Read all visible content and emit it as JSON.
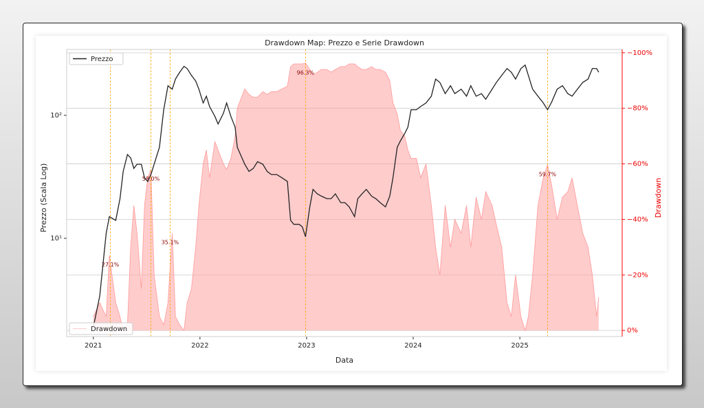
{
  "chart_data": {
    "type": "dual_axis_line_area",
    "title": "Drawdown Map: Prezzo e Serie Drawdown",
    "x_label": "Data",
    "y_label": "Prezzo (Scala Log)",
    "y2_label": "Drawdown",
    "x": [
      2021.0,
      2021.06,
      2021.12,
      2021.15,
      2021.21,
      2021.25,
      2021.28,
      2021.32,
      2021.35,
      2021.38,
      2021.41,
      2021.45,
      2021.48,
      2021.51,
      2021.54,
      2021.57,
      2021.62,
      2021.66,
      2021.7,
      2021.74,
      2021.77,
      2021.81,
      2021.85,
      2021.88,
      2021.92,
      2021.96,
      2021.99,
      2022.03,
      2022.06,
      2022.09,
      2022.14,
      2022.17,
      2022.22,
      2022.25,
      2022.29,
      2022.33,
      2022.35,
      2022.38,
      2022.42,
      2022.46,
      2022.5,
      2022.54,
      2022.59,
      2022.63,
      2022.67,
      2022.72,
      2022.77,
      2022.82,
      2022.85,
      2022.88,
      2022.93,
      2022.96,
      2022.99,
      2023.03,
      2023.06,
      2023.1,
      2023.14,
      2023.19,
      2023.23,
      2023.27,
      2023.32,
      2023.36,
      2023.4,
      2023.45,
      2023.48,
      2023.52,
      2023.56,
      2023.61,
      2023.65,
      2023.69,
      2023.74,
      2023.78,
      2023.81,
      2023.85,
      2023.88,
      2023.92,
      2023.95,
      2023.98,
      2024.03,
      2024.07,
      2024.12,
      2024.17,
      2024.21,
      2024.25,
      2024.3,
      2024.35,
      2024.39,
      2024.45,
      2024.5,
      2024.54,
      2024.59,
      2024.64,
      2024.68,
      2024.74,
      2024.78,
      2024.83,
      2024.88,
      2024.92,
      2024.96,
      2025.01,
      2025.05,
      2025.08,
      2025.12,
      2025.17,
      2025.22,
      2025.26,
      2025.3,
      2025.35,
      2025.4,
      2025.45,
      2025.49,
      2025.54,
      2025.59,
      2025.64,
      2025.68,
      2025.72,
      2025.74
    ],
    "series": [
      {
        "name": "Prezzo",
        "color": "#222222",
        "axis": "y",
        "style": "line",
        "legend": "upper left",
        "values": [
          1.9,
          3.4,
          10.9,
          15,
          14,
          21,
          35,
          48,
          45,
          37,
          40,
          40,
          31,
          29,
          33,
          40,
          55,
          111,
          174,
          163,
          197,
          224,
          250,
          240,
          211,
          190,
          163,
          126,
          143,
          118,
          98,
          85,
          104,
          126,
          98,
          80,
          55,
          48,
          40,
          35,
          37,
          42,
          40,
          35,
          33,
          33,
          31,
          29,
          14,
          13,
          13,
          12.4,
          10.3,
          18,
          25,
          23,
          22,
          21,
          21,
          23,
          19.5,
          19.5,
          18,
          15,
          21,
          23,
          25,
          22,
          21,
          19.5,
          18,
          22,
          31,
          55,
          62,
          71,
          80,
          111,
          111,
          118,
          126,
          143,
          197,
          185,
          150,
          174,
          150,
          163,
          143,
          174,
          143,
          150,
          135,
          163,
          185,
          211,
          240,
          224,
          197,
          240,
          256,
          211,
          163,
          143,
          126,
          111,
          129,
          163,
          174,
          150,
          143,
          163,
          185,
          197,
          240,
          240,
          224
        ]
      },
      {
        "name": "Drawdown",
        "color": "#ff9999",
        "axis": "y2",
        "style": "area",
        "legend": "lower left",
        "values": [
          -5,
          -10,
          -5,
          -27.1,
          -10,
          -5,
          0,
          -2,
          -30,
          -45,
          -35,
          -15,
          -45,
          -55,
          -58,
          -20,
          -5,
          -2,
          -10,
          -35.1,
          -5,
          -2,
          0,
          -10,
          -15,
          -30,
          -45,
          -60,
          -65,
          -55,
          -68,
          -65,
          -60,
          -58,
          -62,
          -70,
          -80,
          -83,
          -87,
          -85,
          -84,
          -84,
          -86,
          -85,
          -86,
          -86,
          -87,
          -88,
          -95,
          -96,
          -96,
          -96,
          -96.3,
          -94,
          -92,
          -93,
          -94,
          -94,
          -93,
          -94,
          -95,
          -95,
          -96,
          -96,
          -95,
          -94,
          -94,
          -95,
          -94,
          -94,
          -93,
          -90,
          -82,
          -78,
          -72,
          -70,
          -65,
          -62,
          -62,
          -55,
          -60,
          -45,
          -30,
          -20,
          -45,
          -30,
          -40,
          -35,
          -45,
          -30,
          -48,
          -40,
          -50,
          -45,
          -38,
          -30,
          -10,
          -5,
          -20,
          -5,
          0,
          -5,
          -20,
          -45,
          -55,
          -59.7,
          -52,
          -40,
          -48,
          -50,
          -55,
          -45,
          -35,
          -30,
          -20,
          -5,
          -12
        ]
      }
    ],
    "xlim": [
      2020.75,
      2025.96
    ],
    "xticks": [
      2021,
      2022,
      2023,
      2024,
      2025
    ],
    "ylim": [
      1.59,
      343
    ],
    "log_y": true,
    "yticks": [
      {
        "value": 10,
        "label": "10¹"
      },
      {
        "value": 100,
        "label": "10²"
      }
    ],
    "y2lim": [
      2.2,
      -101.2
    ],
    "y2ticks": [
      {
        "value": 0,
        "label": "0%"
      },
      {
        "value": -20,
        "label": "−20%"
      },
      {
        "value": -40,
        "label": "−40%"
      },
      {
        "value": -60,
        "label": "−60%"
      },
      {
        "value": -80,
        "label": "−80%"
      },
      {
        "value": -100,
        "label": "−100%"
      }
    ],
    "y2_color": "#ff0000",
    "grid": true,
    "annotations": [
      {
        "x": 2021.16,
        "y": -27.1,
        "text": "27.1%"
      },
      {
        "x": 2021.54,
        "y": -58,
        "text": "58.0%"
      },
      {
        "x": 2021.72,
        "y": -35.1,
        "text": "35.1%"
      },
      {
        "x": 2022.99,
        "y": -96.3,
        "text": "96.3%"
      },
      {
        "x": 2025.26,
        "y": -59.7,
        "text": "59.7%"
      }
    ],
    "annotation_line_color": "#ffa500"
  }
}
